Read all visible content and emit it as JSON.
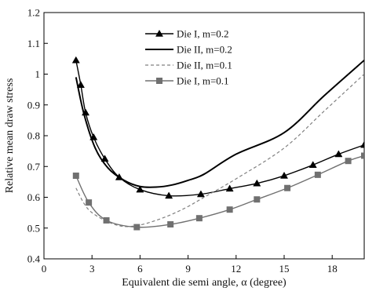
{
  "chart_data": {
    "type": "line",
    "title": "",
    "xlabel": "Equivalent die semi angle, α (degree)",
    "ylabel": "Relative mean draw stress",
    "xlim": [
      0,
      20
    ],
    "ylim": [
      0.4,
      1.2
    ],
    "xticks": [
      0,
      3,
      6,
      9,
      12,
      15,
      18
    ],
    "yticks": [
      0.4,
      0.5,
      0.6,
      0.7,
      0.8,
      0.9,
      1.0,
      1.1,
      1.2
    ],
    "xtick_labels": [
      "0",
      "3",
      "6",
      "9",
      "12",
      "15",
      "18"
    ],
    "ytick_labels": [
      "0.4",
      "0.5",
      "0.6",
      "0.7",
      "0.8",
      "0.9",
      "1",
      "1.1",
      "1.2"
    ],
    "grid": false,
    "legend_position": "top-center",
    "series": [
      {
        "name": "Die I,  m=0.2",
        "color": "#000000",
        "line": "solid",
        "width": 1.4,
        "marker": "triangle",
        "x": [
          2.0,
          2.3,
          2.6,
          3.1,
          3.8,
          4.7,
          6.0,
          7.8,
          9.8,
          11.6,
          13.3,
          15.0,
          16.8,
          18.4,
          20.0
        ],
        "y": [
          1.045,
          0.965,
          0.875,
          0.795,
          0.725,
          0.665,
          0.625,
          0.605,
          0.61,
          0.628,
          0.645,
          0.67,
          0.705,
          0.74,
          0.77
        ]
      },
      {
        "name": "Die II, m=0.2",
        "color": "#000000",
        "line": "solid",
        "width": 2.0,
        "marker": "none",
        "x": [
          2.0,
          2.5,
          3.2,
          4.0,
          5.0,
          6.0,
          7.0,
          8.0,
          9.0,
          10.0,
          12.0,
          15.0,
          17.5,
          20.0
        ],
        "y": [
          0.99,
          0.87,
          0.76,
          0.695,
          0.655,
          0.635,
          0.633,
          0.64,
          0.655,
          0.675,
          0.74,
          0.81,
          0.93,
          1.045
        ]
      },
      {
        "name": "Die II, m=0.1",
        "color": "#808080",
        "line": "dashed",
        "width": 1.2,
        "marker": "none",
        "x": [
          2.0,
          2.5,
          3.0,
          4.0,
          5.0,
          6.0,
          7.0,
          8.0,
          9.0,
          10.0,
          12.0,
          15.0,
          17.5,
          20.0
        ],
        "y": [
          0.63,
          0.58,
          0.55,
          0.52,
          0.505,
          0.51,
          0.525,
          0.545,
          0.57,
          0.6,
          0.66,
          0.76,
          0.88,
          1.0
        ]
      },
      {
        "name": "Die I,  m=0.1",
        "color": "#707070",
        "line": "solid",
        "width": 1.4,
        "marker": "square",
        "x": [
          2.0,
          2.8,
          3.9,
          5.8,
          7.9,
          9.7,
          11.6,
          13.3,
          15.2,
          17.1,
          19.0,
          20.0
        ],
        "y": [
          0.67,
          0.583,
          0.525,
          0.503,
          0.512,
          0.532,
          0.56,
          0.593,
          0.63,
          0.673,
          0.718,
          0.735
        ]
      }
    ]
  }
}
